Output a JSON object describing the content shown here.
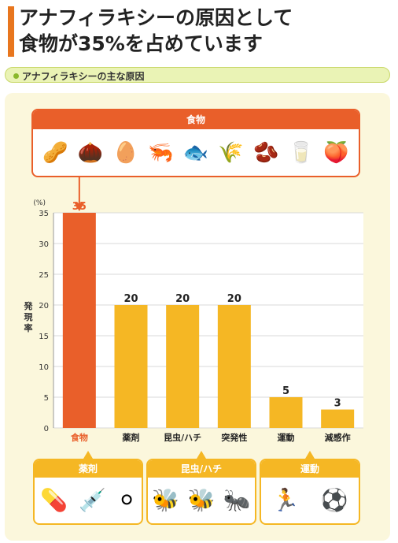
{
  "header": {
    "title_line1": "アナフィラキシーの原因として",
    "title_line2": "食物が35%を占めています",
    "subtitle": "アナフィラキシーの主な原因"
  },
  "food_box": {
    "label": "食物",
    "icons": [
      {
        "name": "peanut-icon",
        "glyph": "🥜"
      },
      {
        "name": "chestnut-icon",
        "glyph": "🌰"
      },
      {
        "name": "egg-icon",
        "glyph": "🥚"
      },
      {
        "name": "shrimp-icon",
        "glyph": "🦐"
      },
      {
        "name": "fish-icon",
        "glyph": "🐟"
      },
      {
        "name": "wheat-icon",
        "glyph": "🌾"
      },
      {
        "name": "soybean-icon",
        "glyph": "🫘"
      },
      {
        "name": "milk-icon",
        "glyph": "🥛"
      },
      {
        "name": "peach-icon",
        "glyph": "🍑"
      }
    ]
  },
  "cause_boxes": [
    {
      "label": "薬剤",
      "icons": [
        {
          "name": "capsule-icon",
          "glyph": "💊"
        },
        {
          "name": "syringe-icon",
          "glyph": "💉"
        },
        {
          "name": "tablet-icon",
          "glyph": "⚪"
        }
      ]
    },
    {
      "label": "昆虫/ハチ",
      "icons": [
        {
          "name": "bee-icon",
          "glyph": "🐝"
        },
        {
          "name": "wasp-icon",
          "glyph": "🐝"
        },
        {
          "name": "ant-icon",
          "glyph": "🐜"
        }
      ]
    },
    {
      "label": "運動",
      "icons": [
        {
          "name": "runner-icon",
          "glyph": "🏃"
        },
        {
          "name": "soccer-ball-icon",
          "glyph": "⚽"
        }
      ]
    }
  ],
  "colors": {
    "highlight": "#e95f2a",
    "bar": "#f5b724",
    "grid": "#d8d8d8"
  },
  "chart_data": {
    "type": "bar",
    "categories": [
      "食物",
      "薬剤",
      "昆虫/ハチ",
      "突発性",
      "運動",
      "減感作"
    ],
    "values": [
      35,
      20,
      20,
      20,
      5,
      3
    ],
    "ylabel": "発現率",
    "yunit": "(%)",
    "ylim": [
      0,
      35
    ],
    "yticks": [
      0,
      5,
      10,
      15,
      20,
      25,
      30,
      35
    ],
    "grid": true,
    "highlight_index": 0
  }
}
